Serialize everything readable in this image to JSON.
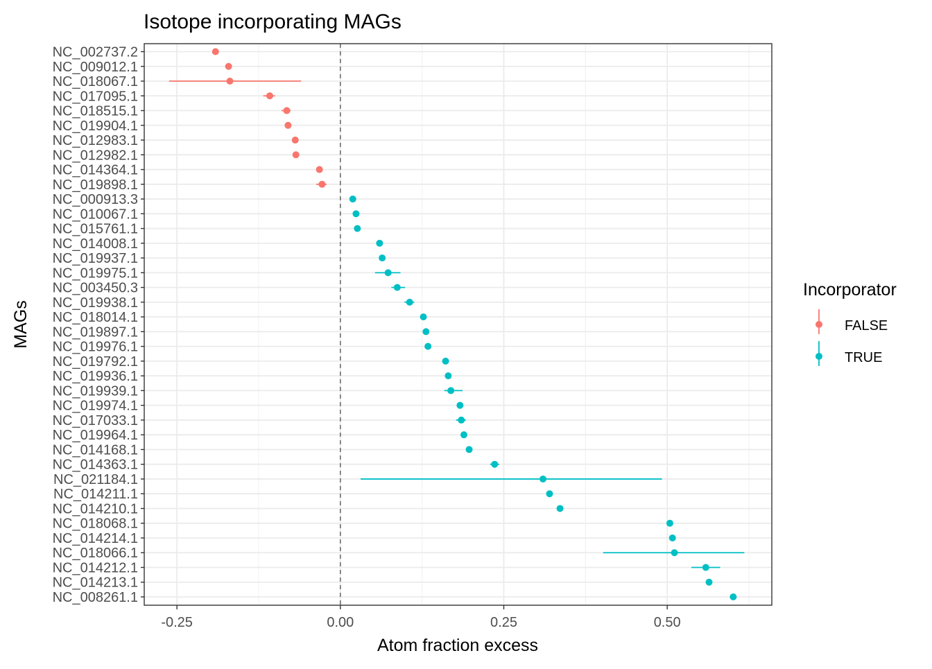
{
  "chart_data": {
    "type": "scatter",
    "title": "Isotope incorporating MAGs",
    "xlabel": "Atom fraction excess",
    "ylabel": "MAGs",
    "xlim": [
      -0.3,
      0.66
    ],
    "x_ticks": [
      -0.25,
      0.0,
      0.25,
      0.5
    ],
    "x_tick_labels": [
      "-0.25",
      "0.00",
      "0.25",
      "0.50"
    ],
    "reference_line": {
      "x": 0,
      "style": "dashed"
    },
    "grid": true,
    "legend": {
      "title": "Incorporator",
      "placement": "right",
      "entries": [
        {
          "label": "FALSE",
          "color": "#F8766D"
        },
        {
          "label": "TRUE",
          "color": "#00BFC4"
        }
      ]
    },
    "colors": {
      "FALSE": "#F8766D",
      "TRUE": "#00BFC4"
    },
    "points": [
      {
        "label": "NC_002737.2",
        "x": -0.191,
        "lo": -0.195,
        "hi": -0.187,
        "group": "FALSE"
      },
      {
        "label": "NC_009012.1",
        "x": -0.171,
        "lo": -0.175,
        "hi": -0.167,
        "group": "FALSE"
      },
      {
        "label": "NC_018067.1",
        "x": -0.169,
        "lo": -0.262,
        "hi": -0.06,
        "group": "FALSE"
      },
      {
        "label": "NC_017095.1",
        "x": -0.108,
        "lo": -0.118,
        "hi": -0.1,
        "group": "FALSE"
      },
      {
        "label": "NC_018515.1",
        "x": -0.082,
        "lo": -0.09,
        "hi": -0.076,
        "group": "FALSE"
      },
      {
        "label": "NC_019904.1",
        "x": -0.08,
        "lo": -0.084,
        "hi": -0.076,
        "group": "FALSE"
      },
      {
        "label": "NC_012983.1",
        "x": -0.069,
        "lo": -0.073,
        "hi": -0.065,
        "group": "FALSE"
      },
      {
        "label": "NC_012982.1",
        "x": -0.068,
        "lo": -0.072,
        "hi": -0.064,
        "group": "FALSE"
      },
      {
        "label": "NC_014364.1",
        "x": -0.032,
        "lo": -0.037,
        "hi": -0.027,
        "group": "FALSE"
      },
      {
        "label": "NC_019898.1",
        "x": -0.028,
        "lo": -0.037,
        "hi": -0.021,
        "group": "FALSE"
      },
      {
        "label": "NC_000913.3",
        "x": 0.019,
        "lo": 0.016,
        "hi": 0.023,
        "group": "TRUE"
      },
      {
        "label": "NC_010067.1",
        "x": 0.024,
        "lo": 0.021,
        "hi": 0.027,
        "group": "TRUE"
      },
      {
        "label": "NC_015761.1",
        "x": 0.026,
        "lo": 0.023,
        "hi": 0.029,
        "group": "TRUE"
      },
      {
        "label": "NC_014008.1",
        "x": 0.06,
        "lo": 0.056,
        "hi": 0.064,
        "group": "TRUE"
      },
      {
        "label": "NC_019937.1",
        "x": 0.064,
        "lo": 0.06,
        "hi": 0.068,
        "group": "TRUE"
      },
      {
        "label": "NC_019975.1",
        "x": 0.073,
        "lo": 0.053,
        "hi": 0.092,
        "group": "TRUE"
      },
      {
        "label": "NC_003450.3",
        "x": 0.087,
        "lo": 0.078,
        "hi": 0.099,
        "group": "TRUE"
      },
      {
        "label": "NC_019938.1",
        "x": 0.106,
        "lo": 0.098,
        "hi": 0.113,
        "group": "TRUE"
      },
      {
        "label": "NC_018014.1",
        "x": 0.127,
        "lo": 0.123,
        "hi": 0.131,
        "group": "TRUE"
      },
      {
        "label": "NC_019897.1",
        "x": 0.131,
        "lo": 0.127,
        "hi": 0.135,
        "group": "TRUE"
      },
      {
        "label": "NC_019976.1",
        "x": 0.134,
        "lo": 0.13,
        "hi": 0.138,
        "group": "TRUE"
      },
      {
        "label": "NC_019792.1",
        "x": 0.161,
        "lo": 0.157,
        "hi": 0.165,
        "group": "TRUE"
      },
      {
        "label": "NC_019936.1",
        "x": 0.165,
        "lo": 0.161,
        "hi": 0.169,
        "group": "TRUE"
      },
      {
        "label": "NC_019939.1",
        "x": 0.169,
        "lo": 0.159,
        "hi": 0.187,
        "group": "TRUE"
      },
      {
        "label": "NC_019974.1",
        "x": 0.183,
        "lo": 0.179,
        "hi": 0.187,
        "group": "TRUE"
      },
      {
        "label": "NC_017033.1",
        "x": 0.185,
        "lo": 0.177,
        "hi": 0.192,
        "group": "TRUE"
      },
      {
        "label": "NC_019964.1",
        "x": 0.189,
        "lo": 0.185,
        "hi": 0.193,
        "group": "TRUE"
      },
      {
        "label": "NC_014168.1",
        "x": 0.197,
        "lo": 0.193,
        "hi": 0.201,
        "group": "TRUE"
      },
      {
        "label": "NC_014363.1",
        "x": 0.236,
        "lo": 0.229,
        "hi": 0.243,
        "group": "TRUE"
      },
      {
        "label": "NC_021184.1",
        "x": 0.31,
        "lo": 0.031,
        "hi": 0.492,
        "group": "TRUE"
      },
      {
        "label": "NC_014211.1",
        "x": 0.32,
        "lo": 0.316,
        "hi": 0.324,
        "group": "TRUE"
      },
      {
        "label": "NC_014210.1",
        "x": 0.336,
        "lo": 0.332,
        "hi": 0.34,
        "group": "TRUE"
      },
      {
        "label": "NC_018068.1",
        "x": 0.504,
        "lo": 0.5,
        "hi": 0.508,
        "group": "TRUE"
      },
      {
        "label": "NC_014214.1",
        "x": 0.508,
        "lo": 0.504,
        "hi": 0.512,
        "group": "TRUE"
      },
      {
        "label": "NC_018066.1",
        "x": 0.511,
        "lo": 0.402,
        "hi": 0.618,
        "group": "TRUE"
      },
      {
        "label": "NC_014212.1",
        "x": 0.559,
        "lo": 0.537,
        "hi": 0.581,
        "group": "TRUE"
      },
      {
        "label": "NC_014213.1",
        "x": 0.564,
        "lo": 0.56,
        "hi": 0.568,
        "group": "TRUE"
      },
      {
        "label": "NC_008261.1",
        "x": 0.601,
        "lo": 0.597,
        "hi": 0.605,
        "group": "TRUE"
      }
    ]
  }
}
